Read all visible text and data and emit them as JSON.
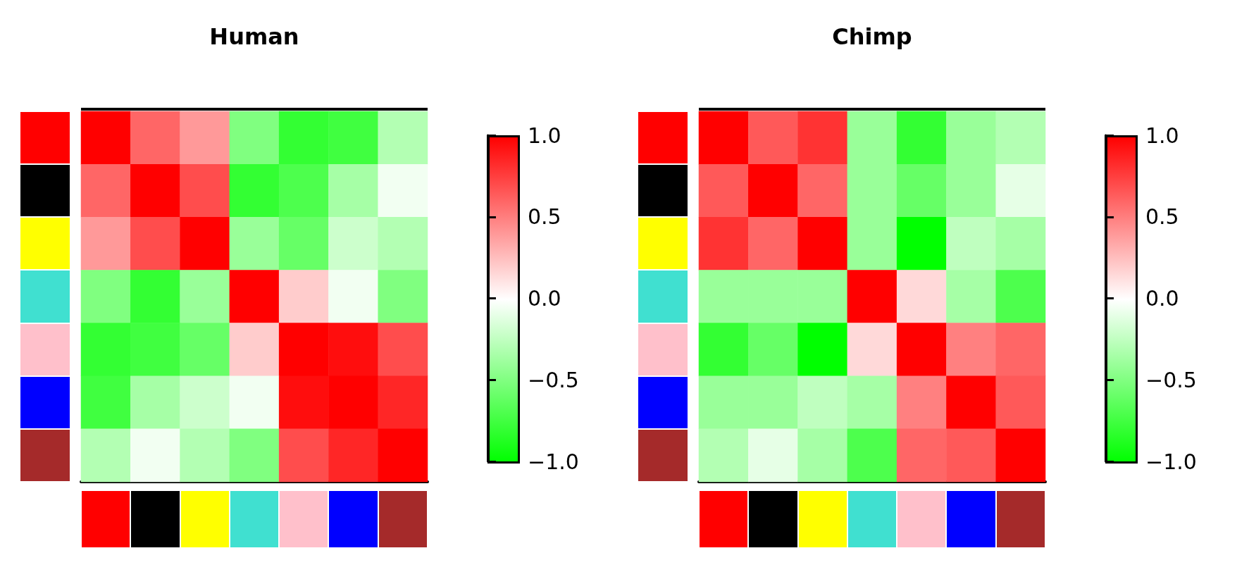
{
  "chart_data": [
    {
      "type": "heatmap",
      "title": "Human",
      "categories": [
        null,
        null,
        null,
        null,
        null,
        null,
        null
      ],
      "y_categories": [
        null,
        null,
        null,
        null,
        null,
        null,
        null
      ],
      "cells": [
        [
          1,
          0.6,
          0.4,
          -0.5,
          -0.8,
          -0.75,
          -0.3
        ],
        [
          0.6,
          1,
          0.7,
          -0.8,
          -0.7,
          -0.35,
          -0.05
        ],
        [
          0.4,
          0.7,
          1,
          -0.4,
          -0.6,
          -0.2,
          -0.3
        ],
        [
          -0.5,
          -0.8,
          -0.4,
          1,
          0.2,
          -0.05,
          -0.5
        ],
        [
          -0.8,
          -0.75,
          -0.6,
          0.2,
          1,
          0.95,
          0.7
        ],
        [
          -0.75,
          -0.35,
          -0.2,
          -0.05,
          0.95,
          1,
          0.85
        ],
        [
          -0.3,
          -0.05,
          -0.3,
          -0.5,
          0.7,
          0.85,
          1
        ]
      ],
      "clim": [
        -1,
        1
      ],
      "cticks": [
        {
          "value": 1,
          "label": "1.0"
        },
        {
          "value": 0.5,
          "label": "0.5"
        },
        {
          "value": 0,
          "label": "0.0"
        },
        {
          "value": -0.5,
          "label": "−0.5"
        },
        {
          "value": -1,
          "label": "−1.0"
        }
      ]
    },
    {
      "type": "heatmap",
      "title": "Chimp",
      "categories": [
        null,
        null,
        null,
        null,
        null,
        null,
        null
      ],
      "y_categories": [
        null,
        null,
        null,
        null,
        null,
        null,
        null
      ],
      "cells": [
        [
          1,
          0.65,
          0.8,
          -0.4,
          -0.8,
          -0.4,
          -0.3
        ],
        [
          0.65,
          1,
          0.6,
          -0.4,
          -0.6,
          -0.4,
          -0.1
        ],
        [
          0.8,
          0.6,
          1,
          -0.4,
          -1,
          -0.25,
          -0.35
        ],
        [
          -0.4,
          -0.4,
          -0.4,
          1,
          0.15,
          -0.35,
          -0.7
        ],
        [
          -0.8,
          -0.6,
          -1,
          0.15,
          1,
          0.5,
          0.6
        ],
        [
          -0.4,
          -0.4,
          -0.25,
          -0.35,
          0.5,
          1,
          0.65
        ],
        [
          -0.3,
          -0.1,
          -0.35,
          -0.7,
          0.6,
          0.65,
          1
        ]
      ],
      "clim": [
        -1,
        1
      ],
      "cticks": [
        {
          "value": 1,
          "label": "1.0"
        },
        {
          "value": 0.5,
          "label": "0.5"
        },
        {
          "value": 0,
          "label": "0.0"
        },
        {
          "value": -0.5,
          "label": "−0.5"
        },
        {
          "value": -1,
          "label": "−1.0"
        }
      ]
    }
  ]
}
